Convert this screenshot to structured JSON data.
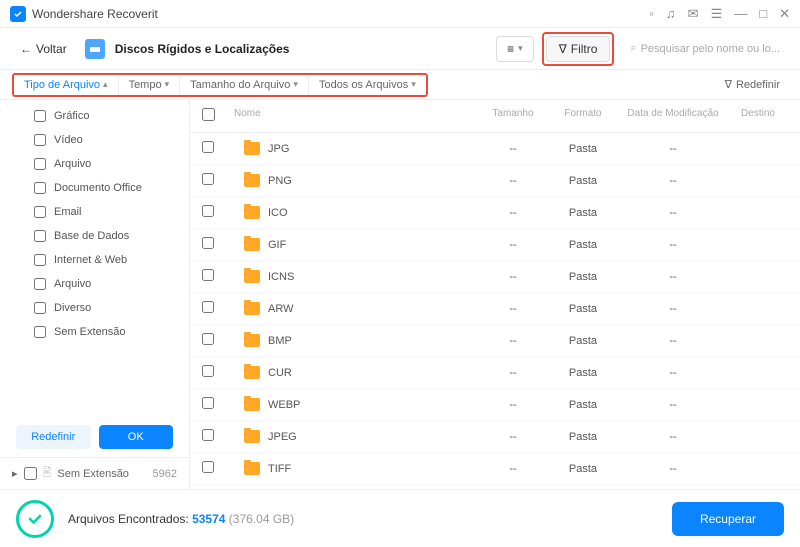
{
  "titlebar": {
    "app": "Wondershare Recoverit"
  },
  "toolbar": {
    "back": "Voltar",
    "breadcrumb": "Discos Rígidos e Localizações",
    "filter": "Filtro",
    "search_placeholder": "Pesquisar pelo nome ou lo..."
  },
  "filters": {
    "items": [
      "Tipo de Arquivo",
      "Tempo",
      "Tamanho do Arquivo",
      "Todos os Arquivos"
    ],
    "reset": "Redefinir"
  },
  "sidebar": {
    "items": [
      "Gráfico",
      "Vídeo",
      "Arquivo",
      "Documento Office",
      "Email",
      "Base de Dados",
      "Internet & Web",
      "Arquivo",
      "Diverso",
      "Sem Extensão"
    ],
    "reset": "Redefinir",
    "ok": "OK",
    "footer_label": "Sem Extensão",
    "footer_count": "5962"
  },
  "table": {
    "headers": {
      "name": "Nome",
      "size": "Tamanho",
      "format": "Formato",
      "date": "Data de Modificação",
      "dest": "Destino"
    },
    "rows": [
      {
        "name": "JPG",
        "size": "--",
        "format": "Pasta",
        "date": "--"
      },
      {
        "name": "PNG",
        "size": "--",
        "format": "Pasta",
        "date": "--"
      },
      {
        "name": "ICO",
        "size": "--",
        "format": "Pasta",
        "date": "--"
      },
      {
        "name": "GIF",
        "size": "--",
        "format": "Pasta",
        "date": "--"
      },
      {
        "name": "ICNS",
        "size": "--",
        "format": "Pasta",
        "date": "--"
      },
      {
        "name": "ARW",
        "size": "--",
        "format": "Pasta",
        "date": "--"
      },
      {
        "name": "BMP",
        "size": "--",
        "format": "Pasta",
        "date": "--"
      },
      {
        "name": "CUR",
        "size": "--",
        "format": "Pasta",
        "date": "--"
      },
      {
        "name": "WEBP",
        "size": "--",
        "format": "Pasta",
        "date": "--"
      },
      {
        "name": "JPEG",
        "size": "--",
        "format": "Pasta",
        "date": "--"
      },
      {
        "name": "TIFF",
        "size": "--",
        "format": "Pasta",
        "date": "--"
      }
    ]
  },
  "bottom": {
    "label": "Arquivos Encontrados:",
    "count": "53574",
    "size": "(376.04 GB)",
    "recover": "Recuperar"
  },
  "colors": {
    "accent": "#0a84ff",
    "folder": "#ffa726",
    "highlight": "#e74c3c",
    "success": "#00d4aa"
  }
}
